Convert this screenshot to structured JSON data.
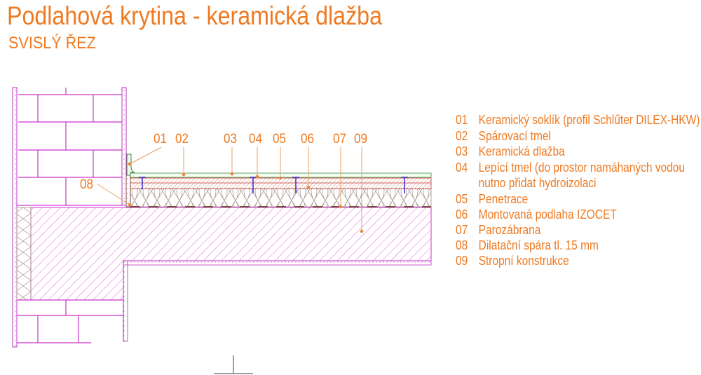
{
  "title": "Podlahová krytina - keramická dlažba",
  "subtitle": "SVISLÝ ŘEZ",
  "callouts": [
    "01",
    "02",
    "03",
    "04",
    "05",
    "06",
    "07",
    "09",
    "08"
  ],
  "legend": [
    {
      "num": "01",
      "text": "Keramický soklík (profil Schlűter DILEX-HKW)"
    },
    {
      "num": "02",
      "text": "Spárovací tmel"
    },
    {
      "num": "03",
      "text": "Keramická dlažba"
    },
    {
      "num": "04",
      "text": "Lepící tmel (do prostor namáhaných vodou"
    },
    {
      "num": "",
      "text": "nutno přidat hydroizolaci"
    },
    {
      "num": "05",
      "text": "Penetrace"
    },
    {
      "num": "06",
      "text": "Montovaná podlaha IZOCET"
    },
    {
      "num": "07",
      "text": "Parozábrana"
    },
    {
      "num": "08",
      "text": "Dilatační spára tl. 15 mm"
    },
    {
      "num": "09",
      "text": "Stropní konstrukce"
    }
  ],
  "colors": {
    "annotation": "#ee7a22",
    "structure": "#cc33cc",
    "floor_board": "#c0392b",
    "insulation": "#9a8a80",
    "tile": "#3a8a3a",
    "screw": "#3a2ad0"
  }
}
